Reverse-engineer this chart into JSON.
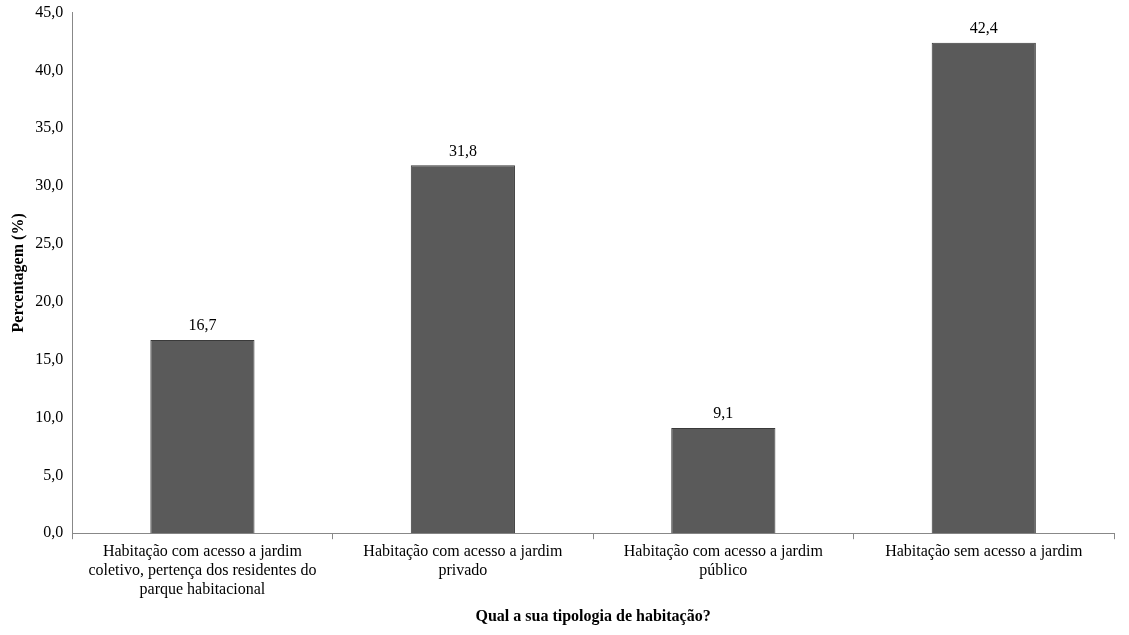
{
  "chart_data": {
    "type": "bar",
    "categories": [
      "Habitação com acesso a jardim coletivo, pertença dos residentes do parque habitacional",
      "Habitação com acesso a jardim privado",
      "Habitação com acesso a jardim público",
      "Habitação sem acesso a jardim"
    ],
    "values": [
      16.7,
      31.8,
      9.1,
      42.4
    ],
    "value_labels": [
      "16,7",
      "31,8",
      "9,1",
      "42,4"
    ],
    "color": "#5a5a5a",
    "xlabel": "Qual a sua tipologia de habitação?",
    "ylabel": "Percentagem (%)",
    "ylim": [
      0,
      45
    ],
    "yticks": [
      {
        "value": 0,
        "label": "0,0"
      },
      {
        "value": 5,
        "label": "5,0"
      },
      {
        "value": 10,
        "label": "10,0"
      },
      {
        "value": 15,
        "label": "15,0"
      },
      {
        "value": 20,
        "label": "20,0"
      },
      {
        "value": 25,
        "label": "25,0"
      },
      {
        "value": 30,
        "label": "30,0"
      },
      {
        "value": 35,
        "label": "35,0"
      },
      {
        "value": 40,
        "label": "40,0"
      },
      {
        "value": 45,
        "label": "45,0"
      }
    ],
    "grid": false,
    "legend": false
  }
}
